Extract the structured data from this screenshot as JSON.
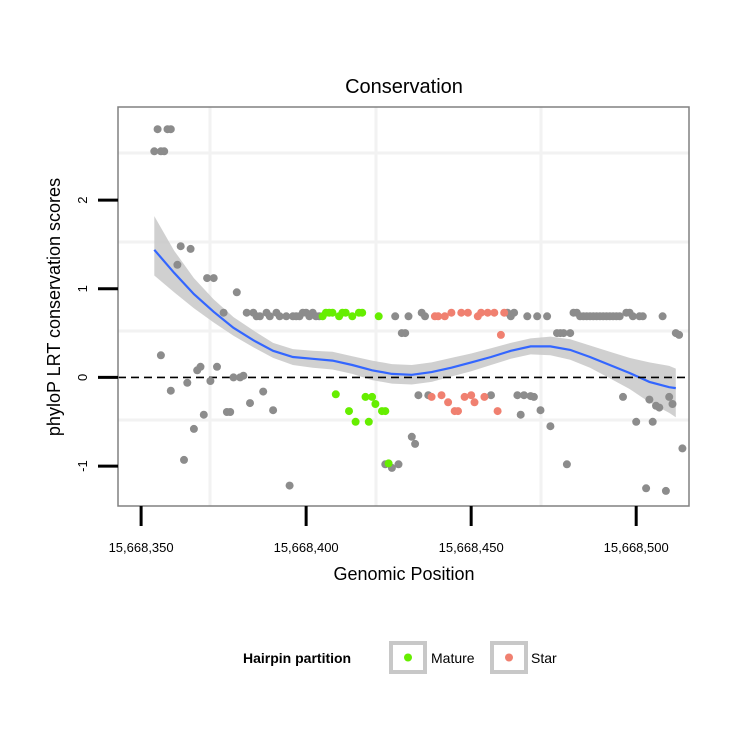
{
  "chart_data": {
    "type": "scatter",
    "title": "Conservation",
    "xlabel": "Genomic Position",
    "ylabel": "phyloP LRT conservation scores",
    "xlim": [
      15668343,
      15668516
    ],
    "ylim": [
      -1.45,
      3.05
    ],
    "x_ticks": [
      15668350,
      15668400,
      15668450,
      15668500
    ],
    "x_tick_labels": [
      "15,668,350",
      "15,668,400",
      "15,668,450",
      "15,668,500"
    ],
    "y_ticks": [
      -1,
      0,
      1,
      2
    ],
    "y_tick_labels": [
      "-1",
      "0",
      "1",
      "2"
    ],
    "reference_line": {
      "y": 0,
      "style": "dashed"
    },
    "legend": {
      "title": "Hairpin partition",
      "position": "bottom",
      "entries": [
        {
          "label": "Mature",
          "color": "#66ee00"
        },
        {
          "label": "Star",
          "color": "#f08070"
        }
      ]
    },
    "colors": {
      "other": "#8c8c8c",
      "mature": "#66ee00",
      "star": "#f08070",
      "smooth_line": "#3366ff",
      "confidence_band": "#c8c8c8"
    },
    "series": [
      {
        "name": "Other",
        "points": [
          [
            15668354,
            2.55
          ],
          [
            15668355,
            2.8
          ],
          [
            15668356,
            2.55
          ],
          [
            15668357,
            2.55
          ],
          [
            15668358,
            2.8
          ],
          [
            15668359,
            2.8
          ],
          [
            15668356,
            0.25
          ],
          [
            15668359,
            -0.15
          ],
          [
            15668361,
            1.27
          ],
          [
            15668362,
            1.48
          ],
          [
            15668363,
            -0.93
          ],
          [
            15668364,
            -0.06
          ],
          [
            15668365,
            1.45
          ],
          [
            15668366,
            -0.58
          ],
          [
            15668367,
            0.08
          ],
          [
            15668368,
            0.12
          ],
          [
            15668369,
            -0.42
          ],
          [
            15668370,
            1.12
          ],
          [
            15668371,
            -0.04
          ],
          [
            15668372,
            1.12
          ],
          [
            15668373,
            0.12
          ],
          [
            15668375,
            0.73
          ],
          [
            15668376,
            -0.39
          ],
          [
            15668377,
            -0.39
          ],
          [
            15668378,
            0.0
          ],
          [
            15668379,
            0.96
          ],
          [
            15668380,
            0.0
          ],
          [
            15668381,
            0.02
          ],
          [
            15668382,
            0.73
          ],
          [
            15668383,
            -0.29
          ],
          [
            15668384,
            0.73
          ],
          [
            15668385,
            0.69
          ],
          [
            15668386,
            0.69
          ],
          [
            15668387,
            -0.16
          ],
          [
            15668388,
            0.73
          ],
          [
            15668389,
            0.69
          ],
          [
            15668390,
            -0.37
          ],
          [
            15668391,
            0.73
          ],
          [
            15668392,
            0.69
          ],
          [
            15668394,
            0.69
          ],
          [
            15668395,
            -1.22
          ],
          [
            15668396,
            0.69
          ],
          [
            15668397,
            0.69
          ],
          [
            15668398,
            0.69
          ],
          [
            15668399,
            0.73
          ],
          [
            15668400,
            0.73
          ],
          [
            15668401,
            0.69
          ],
          [
            15668402,
            0.73
          ],
          [
            15668403,
            0.69
          ],
          [
            15668404,
            0.69
          ],
          [
            15668424,
            -0.98
          ],
          [
            15668426,
            -1.02
          ],
          [
            15668427,
            0.69
          ],
          [
            15668428,
            -0.98
          ],
          [
            15668429,
            0.5
          ],
          [
            15668430,
            0.5
          ],
          [
            15668431,
            0.69
          ],
          [
            15668432,
            -0.67
          ],
          [
            15668433,
            -0.75
          ],
          [
            15668434,
            -0.2
          ],
          [
            15668435,
            0.73
          ],
          [
            15668436,
            0.69
          ],
          [
            15668437,
            -0.2
          ],
          [
            15668456,
            -0.2
          ],
          [
            15668461,
            0.73
          ],
          [
            15668462,
            0.69
          ],
          [
            15668463,
            0.73
          ],
          [
            15668464,
            -0.2
          ],
          [
            15668465,
            -0.42
          ],
          [
            15668466,
            -0.2
          ],
          [
            15668467,
            0.69
          ],
          [
            15668468,
            -0.21
          ],
          [
            15668469,
            -0.22
          ],
          [
            15668470,
            0.69
          ],
          [
            15668471,
            -0.37
          ],
          [
            15668473,
            0.69
          ],
          [
            15668474,
            -0.55
          ],
          [
            15668476,
            0.5
          ],
          [
            15668477,
            0.5
          ],
          [
            15668478,
            0.5
          ],
          [
            15668479,
            -0.98
          ],
          [
            15668480,
            0.5
          ],
          [
            15668481,
            0.73
          ],
          [
            15668482,
            0.73
          ],
          [
            15668483,
            0.69
          ],
          [
            15668484,
            0.69
          ],
          [
            15668485,
            0.69
          ],
          [
            15668486,
            0.69
          ],
          [
            15668487,
            0.69
          ],
          [
            15668488,
            0.69
          ],
          [
            15668489,
            0.69
          ],
          [
            15668490,
            0.69
          ],
          [
            15668491,
            0.69
          ],
          [
            15668492,
            0.69
          ],
          [
            15668493,
            0.69
          ],
          [
            15668494,
            0.69
          ],
          [
            15668495,
            0.69
          ],
          [
            15668496,
            -0.22
          ],
          [
            15668497,
            0.73
          ],
          [
            15668498,
            0.73
          ],
          [
            15668499,
            0.69
          ],
          [
            15668500,
            -0.5
          ],
          [
            15668501,
            0.69
          ],
          [
            15668502,
            0.69
          ],
          [
            15668503,
            -1.25
          ],
          [
            15668504,
            -0.25
          ],
          [
            15668505,
            -0.5
          ],
          [
            15668506,
            -0.32
          ],
          [
            15668507,
            -0.34
          ],
          [
            15668508,
            0.69
          ],
          [
            15668509,
            -1.28
          ],
          [
            15668510,
            -0.22
          ],
          [
            15668511,
            -0.3
          ],
          [
            15668512,
            0.5
          ],
          [
            15668513,
            0.48
          ],
          [
            15668514,
            -0.8
          ]
        ]
      },
      {
        "name": "Mature",
        "points": [
          [
            15668405,
            0.69
          ],
          [
            15668406,
            0.73
          ],
          [
            15668407,
            0.73
          ],
          [
            15668408,
            0.73
          ],
          [
            15668409,
            -0.19
          ],
          [
            15668410,
            0.69
          ],
          [
            15668411,
            0.73
          ],
          [
            15668412,
            0.73
          ],
          [
            15668413,
            -0.38
          ],
          [
            15668414,
            0.69
          ],
          [
            15668415,
            -0.5
          ],
          [
            15668416,
            0.73
          ],
          [
            15668417,
            0.73
          ],
          [
            15668418,
            -0.22
          ],
          [
            15668419,
            -0.5
          ],
          [
            15668420,
            -0.22
          ],
          [
            15668421,
            -0.3
          ],
          [
            15668422,
            0.69
          ],
          [
            15668423,
            -0.38
          ],
          [
            15668424,
            -0.38
          ],
          [
            15668425,
            -0.97
          ]
        ]
      },
      {
        "name": "Star",
        "points": [
          [
            15668438,
            -0.22
          ],
          [
            15668439,
            0.69
          ],
          [
            15668440,
            0.69
          ],
          [
            15668441,
            -0.2
          ],
          [
            15668442,
            0.69
          ],
          [
            15668443,
            -0.28
          ],
          [
            15668444,
            0.73
          ],
          [
            15668445,
            -0.38
          ],
          [
            15668446,
            -0.38
          ],
          [
            15668447,
            0.73
          ],
          [
            15668448,
            -0.22
          ],
          [
            15668449,
            0.73
          ],
          [
            15668450,
            -0.2
          ],
          [
            15668451,
            -0.28
          ],
          [
            15668452,
            0.69
          ],
          [
            15668453,
            0.73
          ],
          [
            15668454,
            -0.22
          ],
          [
            15668455,
            0.73
          ],
          [
            15668457,
            0.73
          ],
          [
            15668458,
            -0.38
          ],
          [
            15668459,
            0.48
          ],
          [
            15668460,
            0.73
          ]
        ]
      }
    ],
    "smooth": {
      "method": "loess",
      "x": [
        15668354,
        15668360,
        15668366,
        15668372,
        15668378,
        15668384,
        15668390,
        15668396,
        15668402,
        15668408,
        15668414,
        15668420,
        15668426,
        15668432,
        15668438,
        15668444,
        15668450,
        15668456,
        15668462,
        15668468,
        15668474,
        15668480,
        15668486,
        15668492,
        15668498,
        15668504,
        15668510,
        15668512
      ],
      "y": [
        1.44,
        1.18,
        0.94,
        0.74,
        0.56,
        0.42,
        0.3,
        0.23,
        0.21,
        0.19,
        0.14,
        0.08,
        0.04,
        0.03,
        0.06,
        0.11,
        0.17,
        0.23,
        0.3,
        0.35,
        0.35,
        0.31,
        0.23,
        0.14,
        0.05,
        -0.05,
        -0.11,
        -0.12
      ],
      "lower": [
        1.15,
        0.96,
        0.78,
        0.62,
        0.47,
        0.34,
        0.22,
        0.14,
        0.11,
        0.09,
        0.04,
        -0.03,
        -0.07,
        -0.08,
        -0.05,
        0.01,
        0.07,
        0.14,
        0.21,
        0.26,
        0.25,
        0.2,
        0.11,
        -0.01,
        -0.13,
        -0.28,
        -0.4,
        -0.45
      ],
      "upper": [
        1.82,
        1.43,
        1.12,
        0.88,
        0.68,
        0.53,
        0.39,
        0.32,
        0.3,
        0.29,
        0.24,
        0.19,
        0.15,
        0.14,
        0.17,
        0.22,
        0.27,
        0.33,
        0.39,
        0.44,
        0.46,
        0.43,
        0.36,
        0.29,
        0.22,
        0.17,
        0.13,
        0.1
      ]
    }
  }
}
